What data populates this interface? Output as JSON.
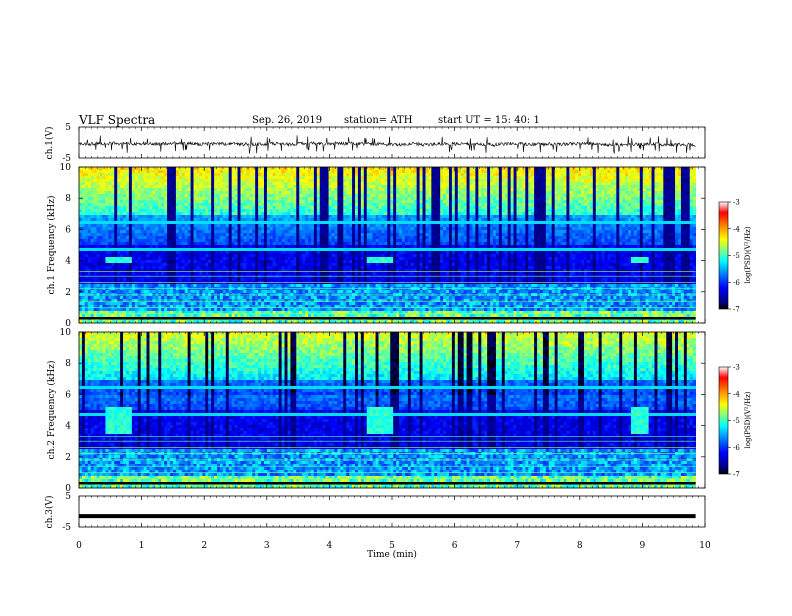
{
  "header": {
    "title": "VLF  Spectra",
    "date": "Sep. 26, 2019",
    "station": "station= ATH",
    "start_ut": "start  UT  =    15: 40: 1"
  },
  "colors": {
    "spectrum": [
      "#000080",
      "#0000ff",
      "#0080ff",
      "#00ffff",
      "#80ff80",
      "#ffff00",
      "#ff8000",
      "#ff0000",
      "#ffffff"
    ],
    "trace": "#000000"
  },
  "chart_data": [
    {
      "type": "line",
      "panel": "ch1-waveform",
      "ylabel": "ch.1(V)",
      "ylim": [
        -5,
        5
      ],
      "yticks": [
        "5",
        "-5"
      ],
      "xlim": [
        0,
        9.85
      ],
      "description_of_values": "noisy waveform centered near -0.5 V with spikes to about -3 V and +2 V"
    },
    {
      "type": "heatmap",
      "panel": "ch1-spectrogram",
      "ylabel": "ch.1  Frequency  (kHz)",
      "ylim": [
        0,
        10
      ],
      "yticks": [
        "0",
        "2",
        "4",
        "6",
        "8",
        "10"
      ],
      "colorbar": {
        "label": "log(PSD)(V²/Hz)",
        "ticks": [
          "-3",
          "-4",
          "-5",
          "-6",
          "-7"
        ],
        "range": [
          -7,
          -3
        ]
      },
      "features": [
        {
          "label": "bright 4 kHz patch",
          "t": [
            0.4,
            0.85
          ],
          "f": [
            3.8,
            4.2
          ]
        },
        {
          "label": "bright 4 kHz patch",
          "t": [
            4.6,
            5.0
          ],
          "f": [
            3.8,
            4.2
          ]
        },
        {
          "label": "bright 4 kHz patch",
          "t": [
            8.8,
            9.1
          ],
          "f": [
            3.8,
            4.2
          ]
        }
      ]
    },
    {
      "type": "heatmap",
      "panel": "ch2-spectrogram",
      "ylabel": "ch.2  Frequency  (kHz)",
      "ylim": [
        0,
        10
      ],
      "yticks": [
        "0",
        "2",
        "4",
        "6",
        "8",
        "10"
      ],
      "colorbar": {
        "label": "log(PSD)(V²/Hz)",
        "ticks": [
          "-3",
          "-4",
          "-5",
          "-6",
          "-7"
        ],
        "range": [
          -7,
          -3
        ]
      },
      "features": [
        {
          "label": "bright 4 kHz patch",
          "t": [
            0.4,
            0.85
          ],
          "f": [
            3.5,
            5.2
          ]
        },
        {
          "label": "bright 4 kHz patch",
          "t": [
            4.6,
            5.0
          ],
          "f": [
            3.5,
            5.2
          ]
        },
        {
          "label": "bright 4 kHz patch",
          "t": [
            8.8,
            9.1
          ],
          "f": [
            3.5,
            5.2
          ]
        }
      ]
    },
    {
      "type": "line",
      "panel": "ch3-waveform",
      "ylabel": "ch.3(V)",
      "ylim": [
        -5,
        5
      ],
      "yticks": [
        "5",
        "-5"
      ],
      "xlim": [
        0,
        9.85
      ],
      "x": [
        0,
        9.85
      ],
      "values": [
        -1.5,
        -1.5
      ]
    }
  ],
  "xaxis": {
    "label": "Time  (min)",
    "ticks": [
      "0",
      "1",
      "2",
      "3",
      "4",
      "5",
      "6",
      "7",
      "8",
      "9",
      "10"
    ],
    "range": [
      0,
      10
    ]
  }
}
